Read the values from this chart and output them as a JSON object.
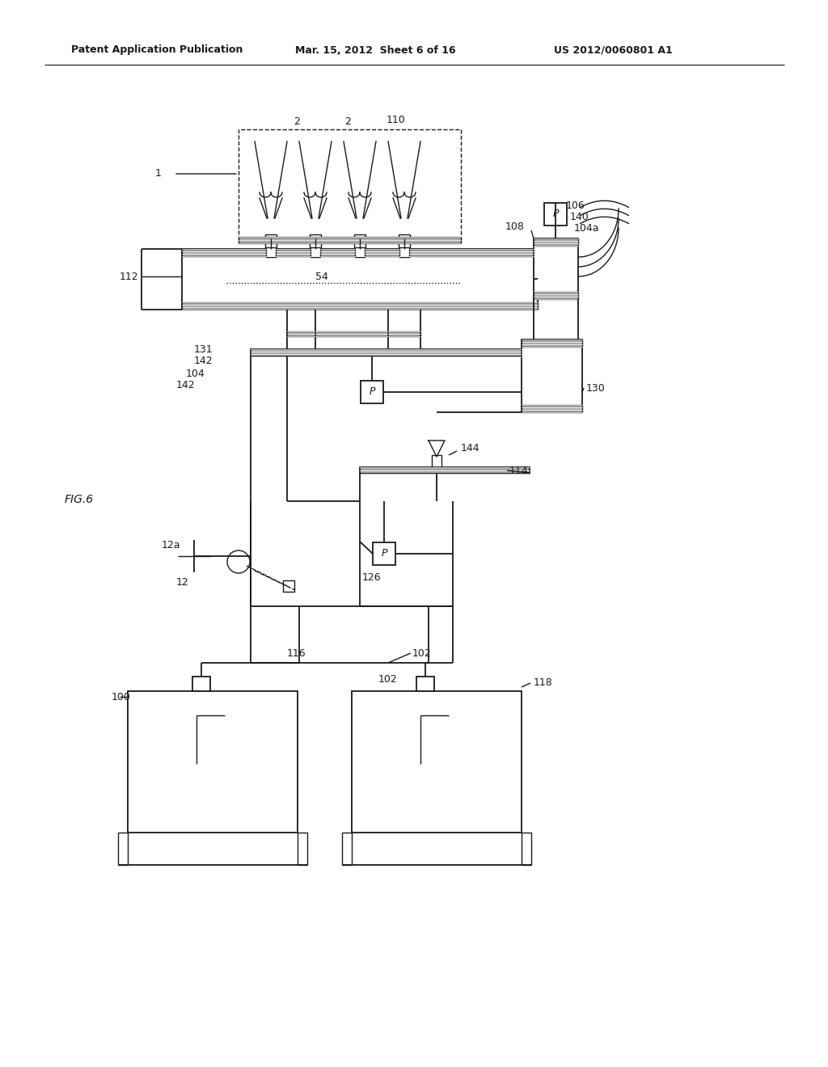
{
  "bg_color": "#ffffff",
  "line_color": "#1a1a1a",
  "text_color": "#1a1a1a",
  "header_left": "Patent Application Publication",
  "header_mid": "Mar. 15, 2012  Sheet 6 of 16",
  "header_right": "US 2012/0060801 A1",
  "fig_label": "FIG.6"
}
